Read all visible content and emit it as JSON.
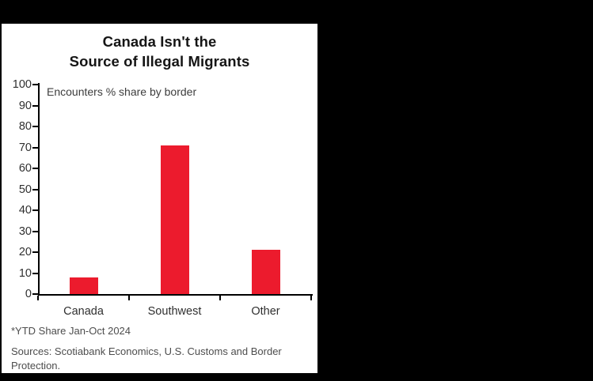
{
  "page": {
    "background_color": "#000000",
    "panel_color": "#ffffff"
  },
  "chart_data": {
    "type": "bar",
    "title_lines": [
      "Canada Isn't the",
      "Source of Illegal Migrants"
    ],
    "annotation": "Encounters % share by border",
    "categories": [
      "Canada",
      "Southwest",
      "Other"
    ],
    "values": [
      8,
      71,
      21
    ],
    "ylim": [
      0,
      100
    ],
    "ytick_step": 10,
    "ytick_labels": [
      "0",
      "10",
      "20",
      "30",
      "40",
      "50",
      "60",
      "70",
      "80",
      "90",
      "100"
    ],
    "grid": false,
    "legend_position": "none",
    "bar_color": "#EC1B2D",
    "axis_color": "#000000",
    "footnote": "*YTD Share Jan-Oct 2024",
    "source_lines": [
      "Sources: Scotiabank Economics, U.S. Customs and Border",
      "Protection."
    ]
  }
}
